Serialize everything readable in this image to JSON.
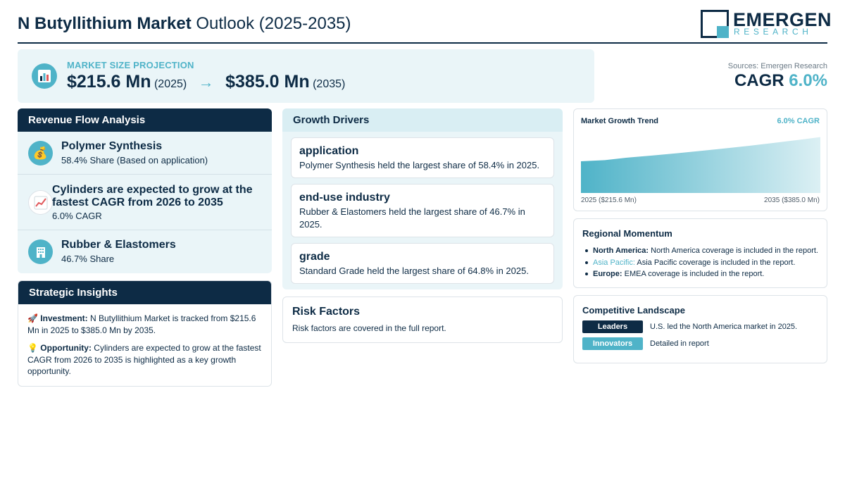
{
  "header": {
    "title_bold": "N Butyllithium Market",
    "title_rest": "Outlook (2025-2035)",
    "logo_name": "EMERGEN",
    "logo_sub": "RESEARCH"
  },
  "projection": {
    "label": "MARKET SIZE PROJECTION",
    "start_value": "$215.6 Mn",
    "start_year": "(2025)",
    "arrow": "→",
    "end_value": "$385.0 Mn",
    "end_year": "(2035)",
    "icon": "bar-chart-icon"
  },
  "summary": {
    "sources": "Sources: Emergen Research",
    "cagr_label": "CAGR",
    "cagr_value": "6.0%"
  },
  "revenue_flow": {
    "heading": "Revenue Flow Analysis",
    "items": [
      {
        "title": "Polymer Synthesis",
        "subtitle": "58.4% Share (Based on application)",
        "icon": "money-bag-icon"
      },
      {
        "title": "Cylinders are expected to grow at the fastest CAGR from 2026 to 2035",
        "subtitle": "6.0% CAGR",
        "icon": "trend-up-icon"
      },
      {
        "title": "Rubber & Elastomers",
        "subtitle": "46.7% Share",
        "icon": "building-icon"
      }
    ]
  },
  "strategic_insights": {
    "heading": "Strategic Insights",
    "items": [
      {
        "icon": "🚀",
        "label": "Investment:",
        "text": "N Butyllithium Market is tracked from $215.6 Mn in 2025 to $385.0 Mn by 2035."
      },
      {
        "icon": "💡",
        "label": "Opportunity:",
        "text": "Cylinders are expected to grow at the fastest CAGR from 2026 to 2035 is highlighted as a key growth opportunity."
      }
    ]
  },
  "growth_drivers": {
    "heading": "Growth Drivers",
    "items": [
      {
        "title": "application",
        "text": "Polymer Synthesis held the largest share of 58.4% in 2025."
      },
      {
        "title": "end-use industry",
        "text": "Rubber & Elastomers held the largest share of 46.7% in 2025."
      },
      {
        "title": "grade",
        "text": "Standard Grade held the largest share of 64.8% in 2025."
      }
    ]
  },
  "risk_factors": {
    "heading": "Risk Factors",
    "text": "Risk factors are covered in the full report."
  },
  "trend": {
    "heading": "Market Growth Trend",
    "cagr_label": "6.0% CAGR",
    "start_label": "2025 ($215.6 Mn)",
    "end_label": "2035 ($385.0 Mn)",
    "fill_color": "#4fb3c8"
  },
  "chart_data": {
    "type": "area",
    "title": "Market Growth Trend",
    "x": [
      2025,
      2035
    ],
    "series": [
      {
        "values": [
          215.6,
          385.0
        ]
      }
    ]
  },
  "regional": {
    "heading": "Regional Momentum",
    "items": [
      {
        "region": "North America:",
        "text": "North America coverage is included in the report."
      },
      {
        "region": "Asia Pacific:",
        "text": "Asia Pacific coverage is included in the report."
      },
      {
        "region": "Europe:",
        "text": "EMEA coverage is included in the report."
      }
    ]
  },
  "competitive": {
    "heading": "Competitive Landscape",
    "items": [
      {
        "badge": "Leaders",
        "text": "U.S. led the North America market in 2025."
      },
      {
        "badge": "Innovators",
        "text": "Detailed in report"
      }
    ]
  },
  "colors": {
    "navy": "#0d2b45",
    "teal": "#4fb3c8",
    "panel": "#eaf5f8"
  }
}
